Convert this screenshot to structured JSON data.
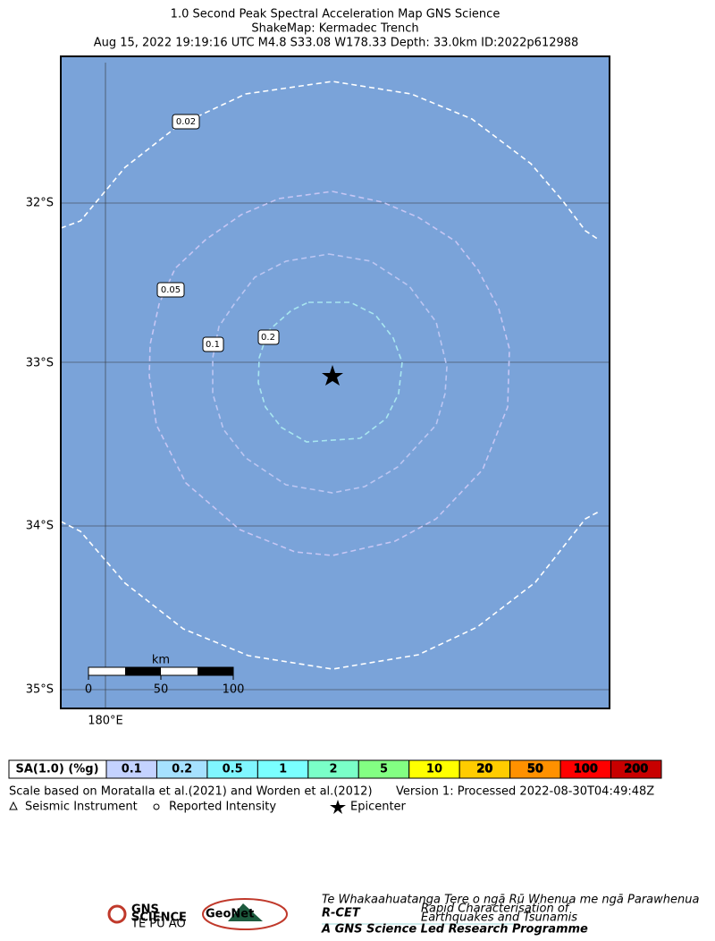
{
  "header": {
    "title": "1.0 Second Peak Spectral Acceleration Map GNS Science",
    "subtitle": "ShakeMap: Kermadec Trench",
    "event": "Aug 15, 2022 19:19:16 UTC M4.8 S33.08 W178.33 Depth: 33.0km ID:2022p612988"
  },
  "map": {
    "lat_labels": [
      "32°S",
      "33°S",
      "34°S",
      "35°S"
    ],
    "lon_labels": [
      "180°E"
    ],
    "contour_labels": [
      "0.02",
      "0.05",
      "0.1",
      "0.2"
    ],
    "scale_bar": {
      "unit": "km",
      "ticks": [
        "0",
        "50",
        "100"
      ]
    }
  },
  "legend": {
    "title": "SA(1.0) (%g)",
    "bins": [
      {
        "label": "0.1",
        "color": "#c4d2ff"
      },
      {
        "label": "0.2",
        "color": "#a6e1ff"
      },
      {
        "label": "0.5",
        "color": "#80f6ff"
      },
      {
        "label": "1",
        "color": "#7affff"
      },
      {
        "label": "2",
        "color": "#7affc8"
      },
      {
        "label": "5",
        "color": "#83ff83"
      },
      {
        "label": "10",
        "color": "#ffff00"
      },
      {
        "label": "20",
        "color": "#ffcc00"
      },
      {
        "label": "50",
        "color": "#ff9100"
      },
      {
        "label": "100",
        "color": "#ff0000"
      },
      {
        "label": "200",
        "color": "#c80000"
      }
    ],
    "note": "Scale based on Moratalla et al.(2021) and Worden et al.(2012)",
    "version": "Version 1: Processed 2022-08-30T04:49:48Z",
    "symbols": [
      "Seismic Instrument",
      "Reported Intensity",
      "Epicenter"
    ]
  },
  "logos": {
    "gns": "GNS",
    "gns_sub": "SCIENCE",
    "gns_maori": "TE PŪ AO",
    "geonet": "GeoNet",
    "rcet": "R-CET",
    "rcet_maori": "Te Whakaahuatanga Tere o ngā Rū Whenua me ngā Parawhenua",
    "rcet_line1": "Rapid Characterisation of",
    "rcet_line2": "Earthquakes and Tsunamis",
    "rcet_footer": "A GNS Science Led Research Programme"
  }
}
